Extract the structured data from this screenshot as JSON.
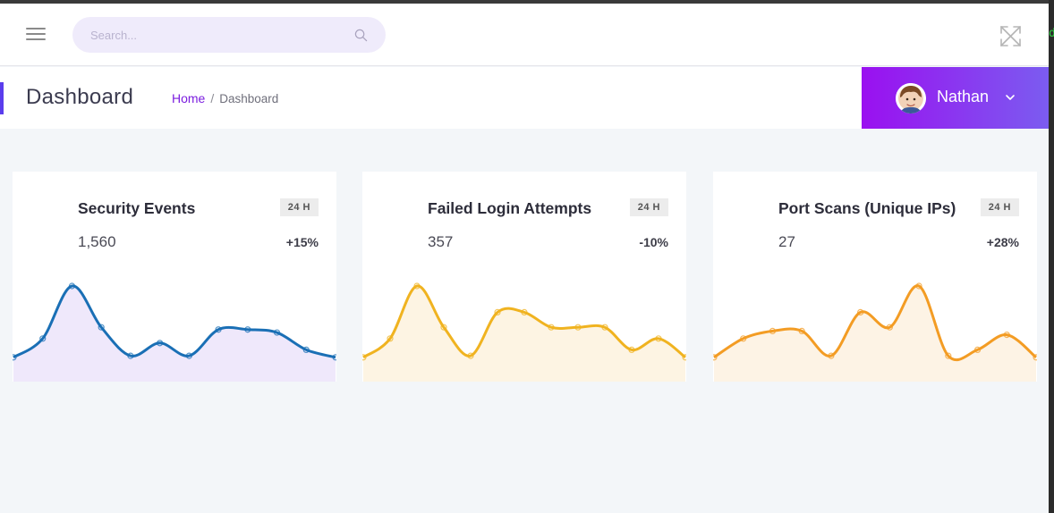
{
  "topbar": {
    "search_placeholder": "Search...",
    "menu_icon": "hamburger-icon",
    "search_icon": "search-icon",
    "fullscreen_icon": "expand-icon"
  },
  "header": {
    "title": "Dashboard",
    "breadcrumb": [
      "Home",
      "Dashboard"
    ],
    "user": {
      "name": "Nathan",
      "avatar_icon": "avatar",
      "dropdown_icon": "chevron-down-icon"
    }
  },
  "colors": {
    "accent": "#5b3ded",
    "user_gradient_start": "#9a10f0",
    "user_gradient_end": "#7b5cf0"
  },
  "cards": [
    {
      "title": "Security Events",
      "badge": "24 H",
      "value": "1,560",
      "change": "+15%",
      "line_color": "#1a6fb5",
      "fill_color": "#efe8fb"
    },
    {
      "title": "Failed Login Attempts",
      "badge": "24 H",
      "value": "357",
      "change": "-10%",
      "line_color": "#f0b320",
      "fill_color": "#fdf4e3"
    },
    {
      "title": "Port Scans (Unique IPs)",
      "badge": "24 H",
      "value": "27",
      "change": "+28%",
      "line_color": "#f39c24",
      "fill_color": "#fdf3e5"
    }
  ],
  "chart_data": [
    {
      "type": "area",
      "values": [
        5,
        30,
        100,
        45,
        7,
        24,
        7,
        42,
        42,
        38,
        15,
        5
      ]
    },
    {
      "type": "area",
      "values": [
        5,
        30,
        100,
        45,
        7,
        65,
        65,
        45,
        45,
        45,
        15,
        30,
        5
      ]
    },
    {
      "type": "area",
      "values": [
        5,
        30,
        40,
        40,
        7,
        65,
        45,
        100,
        7,
        15,
        35,
        5
      ]
    }
  ]
}
